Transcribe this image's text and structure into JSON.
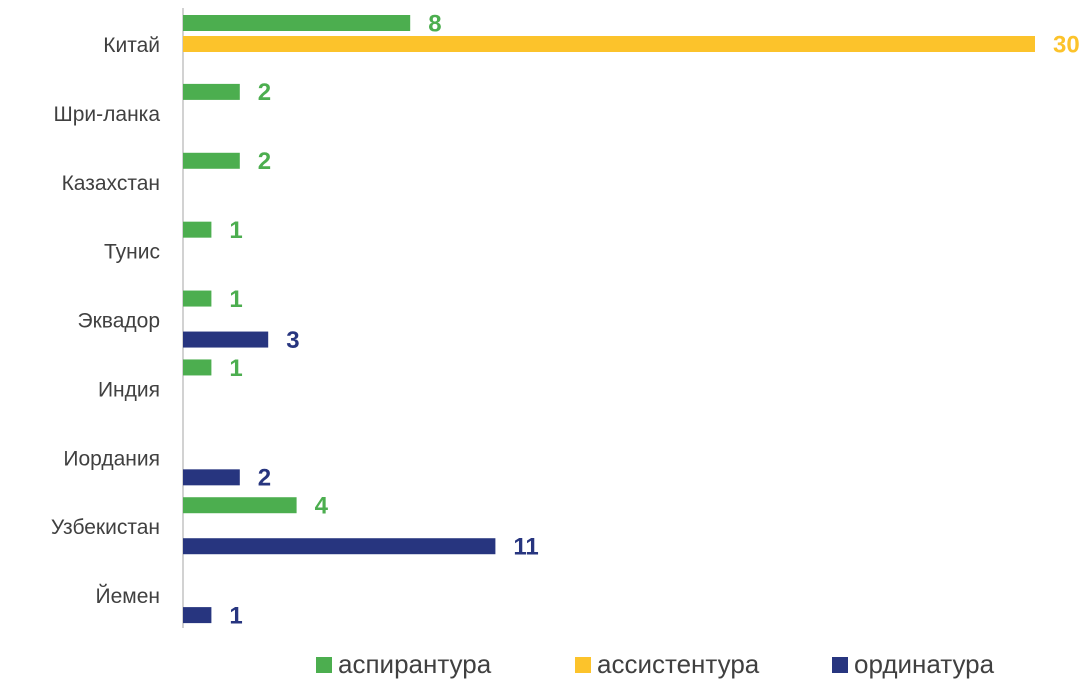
{
  "chart_data": {
    "type": "hbar",
    "categories": [
      "Китай",
      "Шри-ланка",
      "Казахстан",
      "Тунис",
      "Эквадор",
      "Индия",
      "Иордания ",
      "Узбекистан",
      "Йемен"
    ],
    "series": [
      {
        "name": "аспирантура",
        "color": "#4cae4f",
        "values": [
          8,
          2,
          2,
          1,
          1,
          1,
          null,
          4,
          null
        ]
      },
      {
        "name": "ассистентура",
        "color": "#fcc32b",
        "values": [
          30,
          null,
          null,
          null,
          null,
          null,
          null,
          null,
          null
        ]
      },
      {
        "name": "ординатура",
        "color": "#27357f",
        "values": [
          null,
          null,
          null,
          null,
          3,
          null,
          2,
          11,
          1
        ]
      }
    ],
    "xlim": [
      0,
      30
    ],
    "legend": "bottom"
  }
}
